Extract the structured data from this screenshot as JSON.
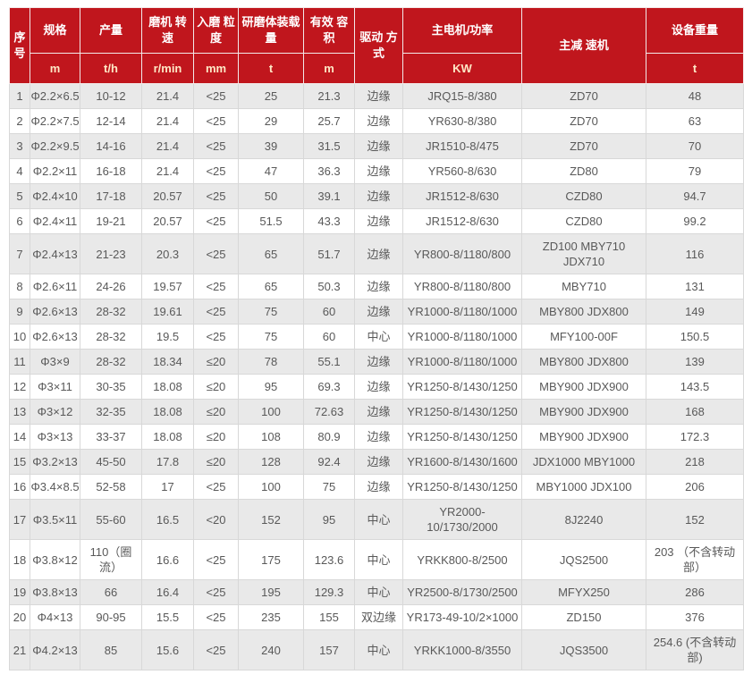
{
  "colors": {
    "header_bg": "#c0161d",
    "header_text": "#ffffff",
    "unit_text": "#ffe8c6",
    "row_alt_bg": "#e9e9e9",
    "row_bg": "#ffffff",
    "cell_text": "#595959",
    "border": "#d8d8d8"
  },
  "chart_data": {
    "type": "table",
    "columns": [
      {
        "label": "序号",
        "unit": null
      },
      {
        "label": "规格",
        "unit": "m"
      },
      {
        "label": "产量",
        "unit": "t/h"
      },
      {
        "label": "磨机 转速",
        "unit": "r/min"
      },
      {
        "label": "入磨 粒度",
        "unit": "mm"
      },
      {
        "label": "研磨体装载量",
        "unit": "t"
      },
      {
        "label": "有效 容积",
        "unit": "m"
      },
      {
        "label": "驱动 方式",
        "unit": null
      },
      {
        "label": "主电机/功率",
        "unit": "KW"
      },
      {
        "label": "主减 速机",
        "unit": null
      },
      {
        "label": "设备重量",
        "unit": "t"
      }
    ],
    "rows": [
      [
        "1",
        "Φ2.2×6.5",
        "10-12",
        "21.4",
        "<25",
        "25",
        "21.3",
        "边缘",
        "JRQ15-8/380",
        "ZD70",
        "48"
      ],
      [
        "2",
        "Φ2.2×7.5",
        "12-14",
        "21.4",
        "<25",
        "29",
        "25.7",
        "边缘",
        "YR630-8/380",
        "ZD70",
        "63"
      ],
      [
        "3",
        "Φ2.2×9.5",
        "14-16",
        "21.4",
        "<25",
        "39",
        "31.5",
        "边缘",
        "JR1510-8/475",
        "ZD70",
        "70"
      ],
      [
        "4",
        "Φ2.2×11",
        "16-18",
        "21.4",
        "<25",
        "47",
        "36.3",
        "边缘",
        "YR560-8/630",
        "ZD80",
        "79"
      ],
      [
        "5",
        "Φ2.4×10",
        "17-18",
        "20.57",
        "<25",
        "50",
        "39.1",
        "边缘",
        "JR1512-8/630",
        "CZD80",
        "94.7"
      ],
      [
        "6",
        "Φ2.4×11",
        "19-21",
        "20.57",
        "<25",
        "51.5",
        "43.3",
        "边缘",
        "JR1512-8/630",
        "CZD80",
        "99.2"
      ],
      [
        "7",
        "Φ2.4×13",
        "21-23",
        "20.3",
        "<25",
        "65",
        "51.7",
        "边缘",
        "YR800-8/1180/800",
        "ZD100 MBY710 JDX710",
        "116"
      ],
      [
        "8",
        "Φ2.6×11",
        "24-26",
        "19.57",
        "<25",
        "65",
        "50.3",
        "边缘",
        "YR800-8/1180/800",
        "MBY710",
        "131"
      ],
      [
        "9",
        "Φ2.6×13",
        "28-32",
        "19.61",
        "<25",
        "75",
        "60",
        "边缘",
        "YR1000-8/1180/1000",
        "MBY800 JDX800",
        "149"
      ],
      [
        "10",
        "Φ2.6×13",
        "28-32",
        "19.5",
        "<25",
        "75",
        "60",
        "中心",
        "YR1000-8/1180/1000",
        "MFY100-00F",
        "150.5"
      ],
      [
        "11",
        "Φ3×9",
        "28-32",
        "18.34",
        "≤20",
        "78",
        "55.1",
        "边缘",
        "YR1000-8/1180/1000",
        "MBY800 JDX800",
        "139"
      ],
      [
        "12",
        "Φ3×11",
        "30-35",
        "18.08",
        "≤20",
        "95",
        "69.3",
        "边缘",
        "YR1250-8/1430/1250",
        "MBY900 JDX900",
        "143.5"
      ],
      [
        "13",
        "Φ3×12",
        "32-35",
        "18.08",
        "≤20",
        "100",
        "72.63",
        "边缘",
        "YR1250-8/1430/1250",
        "MBY900 JDX900",
        "168"
      ],
      [
        "14",
        "Φ3×13",
        "33-37",
        "18.08",
        "≤20",
        "108",
        "80.9",
        "边缘",
        "YR1250-8/1430/1250",
        "MBY900 JDX900",
        "172.3"
      ],
      [
        "15",
        "Φ3.2×13",
        "45-50",
        "17.8",
        "≤20",
        "128",
        "92.4",
        "边缘",
        "YR1600-8/1430/1600",
        "JDX1000 MBY1000",
        "218"
      ],
      [
        "16",
        "Φ3.4×8.5",
        "52-58",
        "17",
        "<25",
        "100",
        "75",
        "边缘",
        "YR1250-8/1430/1250",
        "MBY1000 JDX100",
        "206"
      ],
      [
        "17",
        "Φ3.5×11",
        "55-60",
        "16.5",
        "<20",
        "152",
        "95",
        "中心",
        "YR2000-10/1730/2000",
        "8J2240",
        "152"
      ],
      [
        "18",
        "Φ3.8×12",
        "110（圈流）",
        "16.6",
        "<25",
        "175",
        "123.6",
        "中心",
        "YRKK800-8/2500",
        "JQS2500",
        "203 （不含转动部）"
      ],
      [
        "19",
        "Φ3.8×13",
        "66",
        "16.4",
        "<25",
        "195",
        "129.3",
        "中心",
        "YR2500-8/1730/2500",
        "MFYX250",
        "286"
      ],
      [
        "20",
        "Φ4×13",
        "90-95",
        "15.5",
        "<25",
        "235",
        "155",
        "双边缘",
        "YR173-49-10/2×1000",
        "ZD150",
        "376"
      ],
      [
        "21",
        "Φ4.2×13",
        "85",
        "15.6",
        "<25",
        "240",
        "157",
        "中心",
        "YRKK1000-8/3550",
        "JQS3500",
        "254.6 (不含转动部)"
      ]
    ]
  }
}
